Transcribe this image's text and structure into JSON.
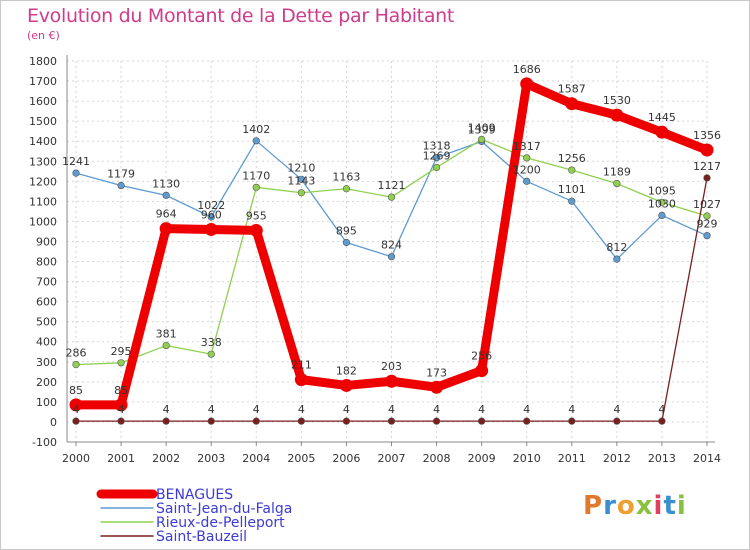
{
  "title": "Evolution du Montant de la Dette par Habitant",
  "unit": "(en €)",
  "logo": {
    "text": "Proxiti",
    "colors": [
      "#e0782e",
      "#3a8fd0",
      "#f0a030",
      "#8ac040",
      "#e04060",
      "#3a8fd0",
      "#8ac040"
    ]
  },
  "chart_data": {
    "type": "line",
    "x": [
      "2000",
      "2001",
      "2002",
      "2003",
      "2004",
      "2005",
      "2006",
      "2007",
      "2008",
      "2009",
      "2010",
      "2011",
      "2012",
      "2013",
      "2014"
    ],
    "ylim": [
      -100,
      1800
    ],
    "yticks": [
      -100,
      0,
      100,
      200,
      300,
      400,
      500,
      600,
      700,
      800,
      900,
      1000,
      1100,
      1200,
      1300,
      1400,
      1500,
      1600,
      1700,
      1800
    ],
    "grid": true,
    "legend": "bottom-left",
    "series": [
      {
        "name": "BENAGUES",
        "color": "#ee0000",
        "emphasis": true,
        "values": [
          85,
          85,
          964,
          960,
          955,
          211,
          182,
          203,
          173,
          256,
          1686,
          1587,
          1530,
          1445,
          1356
        ],
        "labels": [
          "85",
          "85",
          "964",
          "960",
          "955",
          "211",
          "182",
          "203",
          "173",
          "256",
          "1686",
          "1587",
          "1530",
          "1445",
          "1356"
        ]
      },
      {
        "name": "Saint-Jean-du-Falga",
        "color": "#5e9bd1",
        "values": [
          1241,
          1179,
          1130,
          1022,
          1402,
          1210,
          895,
          824,
          1318,
          1399,
          1200,
          1101,
          812,
          1030,
          929
        ],
        "labels": [
          "1241",
          "1179",
          "1130",
          "1022",
          "1402",
          "1210",
          "895",
          "824",
          "1318",
          "1399",
          "1200",
          "1101",
          "812",
          "1030",
          "929"
        ]
      },
      {
        "name": "Rieux-de-Pelleport",
        "color": "#8fd050",
        "values": [
          286,
          295,
          381,
          338,
          1170,
          1143,
          1163,
          1121,
          1269,
          1409,
          1317,
          1256,
          1189,
          1095,
          1027
        ],
        "labels": [
          "286",
          "295",
          "381",
          "338",
          "1170",
          "1143",
          "1163",
          "1121",
          "1269",
          "1409",
          "1317",
          "1256",
          "1189",
          "1095",
          "1027"
        ]
      },
      {
        "name": "Saint-Bauzeil",
        "color": "#7a1e1e",
        "values": [
          4,
          4,
          4,
          4,
          4,
          4,
          4,
          4,
          4,
          4,
          4,
          4,
          4,
          4,
          1217
        ],
        "labels": [
          "4",
          "4",
          "4",
          "4",
          "4",
          "4",
          "4",
          "4",
          "4",
          "4",
          "4",
          "4",
          "4",
          "4",
          "1217"
        ]
      }
    ]
  }
}
